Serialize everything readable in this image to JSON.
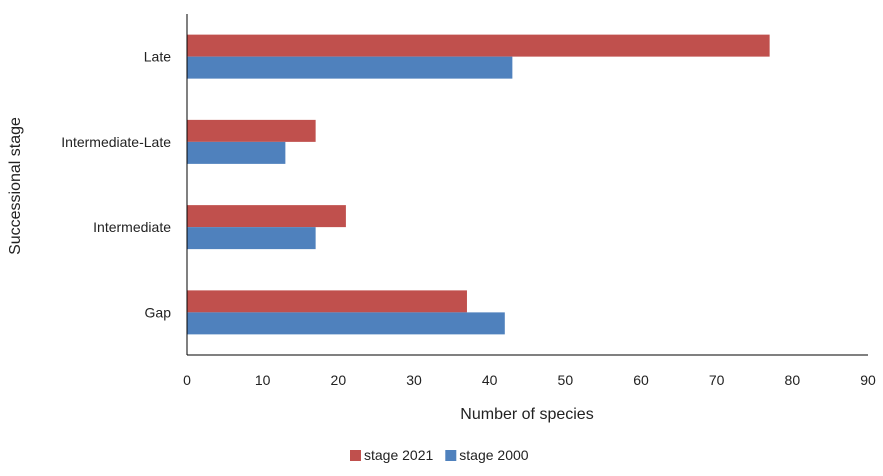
{
  "chart_data": {
    "type": "bar",
    "orientation": "horizontal",
    "categories": [
      "Late",
      "Intermediate-Late",
      "Intermediate",
      "Gap"
    ],
    "series": [
      {
        "name": "stage 2021",
        "color": "#c0504d",
        "values": [
          77,
          17,
          21,
          37
        ]
      },
      {
        "name": "stage 2000",
        "color": "#4f81bd",
        "values": [
          43,
          13,
          17,
          42
        ]
      }
    ],
    "xlabel": "Number of species",
    "ylabel": "Successional stage",
    "xlim": [
      0,
      90
    ],
    "xticks": [
      "0",
      "10",
      "20",
      "30",
      "40",
      "50",
      "60",
      "70",
      "80",
      "90"
    ],
    "grid": false,
    "legend_position": "bottom"
  }
}
